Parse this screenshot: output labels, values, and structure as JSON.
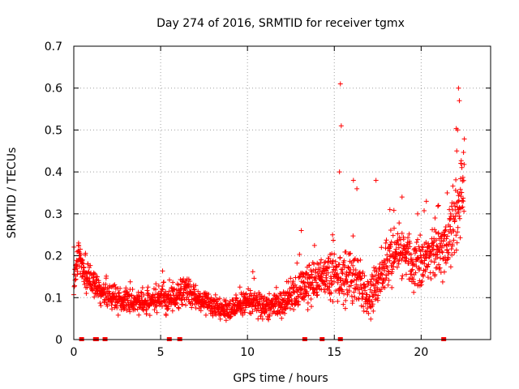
{
  "chart_data": {
    "type": "scatter",
    "title": "Day 274 of 2016, SRMTID for receiver tgmx",
    "xlabel": "GPS time / hours",
    "ylabel": "SRMTID / TECUs",
    "xlim": [
      0,
      24
    ],
    "ylim": [
      0,
      0.7
    ],
    "xticks": [
      0,
      5,
      10,
      15,
      20
    ],
    "xtick_labels": [
      "0",
      "5",
      "10",
      "15",
      "20"
    ],
    "yticks": [
      0,
      0.1,
      0.2,
      0.3,
      0.4,
      0.5,
      0.6,
      0.7
    ],
    "ytick_labels": [
      "0",
      "0.1",
      "0.2",
      "0.3",
      "0.4",
      "0.5",
      "0.6",
      "0.7"
    ],
    "grid": true,
    "marker": "+",
    "series": [
      {
        "name": "SRMTID",
        "color": "#ff0000",
        "envelope": {
          "x": [
            0,
            0.3,
            0.5,
            1,
            1.5,
            2,
            3,
            4,
            5,
            5.5,
            6,
            6.5,
            7,
            8,
            9,
            10,
            11,
            12,
            13,
            14,
            14.5,
            15,
            15.3,
            16,
            16.5,
            17,
            17.5,
            18,
            18.5,
            19,
            19.5,
            20,
            20.5,
            21,
            21.5,
            22,
            22.5
          ],
          "y": [
            0.16,
            0.2,
            0.17,
            0.14,
            0.11,
            0.1,
            0.09,
            0.09,
            0.1,
            0.09,
            0.1,
            0.12,
            0.1,
            0.08,
            0.07,
            0.09,
            0.08,
            0.09,
            0.12,
            0.14,
            0.16,
            0.15,
            0.14,
            0.16,
            0.13,
            0.09,
            0.14,
            0.18,
            0.2,
            0.22,
            0.18,
            0.19,
            0.2,
            0.2,
            0.22,
            0.3,
            0.36
          ],
          "spread": [
            0.04,
            0.04,
            0.04,
            0.035,
            0.03,
            0.03,
            0.03,
            0.03,
            0.035,
            0.03,
            0.035,
            0.04,
            0.03,
            0.025,
            0.025,
            0.03,
            0.03,
            0.035,
            0.045,
            0.05,
            0.05,
            0.06,
            0.06,
            0.06,
            0.05,
            0.045,
            0.05,
            0.06,
            0.06,
            0.06,
            0.06,
            0.06,
            0.06,
            0.06,
            0.07,
            0.1,
            0.12
          ]
        },
        "outliers": {
          "x": [
            15.35,
            15.4,
            15.3,
            20.3,
            21.0,
            21.5,
            22.15,
            22.2,
            22.1,
            22.05,
            22.3,
            16.1,
            16.3,
            17.4,
            18.2,
            18.9,
            19.8,
            20.8,
            21.7,
            14.9,
            13.1
          ],
          "y": [
            0.61,
            0.51,
            0.4,
            0.33,
            0.32,
            0.35,
            0.6,
            0.57,
            0.5,
            0.45,
            0.42,
            0.38,
            0.36,
            0.38,
            0.31,
            0.34,
            0.3,
            0.29,
            0.3,
            0.25,
            0.26
          ]
        },
        "zero_points_x": [
          0.45,
          1.25,
          1.3,
          1.8,
          5.5,
          6.1,
          13.3,
          14.3,
          15.35,
          21.3
        ]
      }
    ]
  }
}
